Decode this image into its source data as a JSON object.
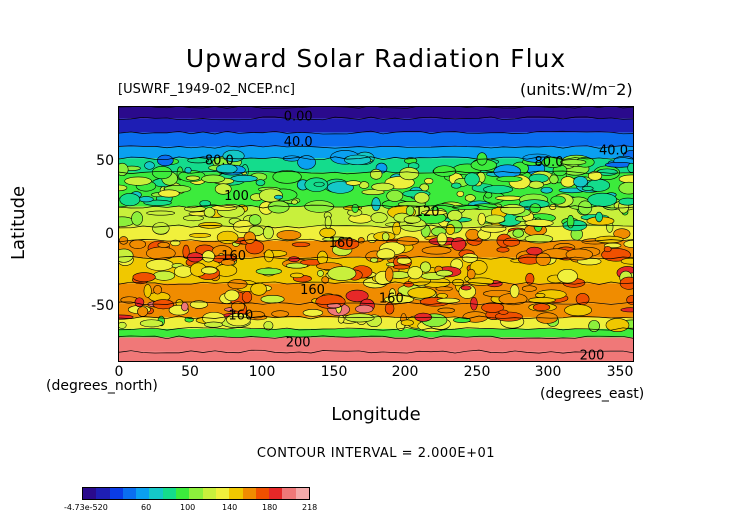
{
  "title": "Upward Solar Radiation Flux",
  "filename": "[USWRF_1949-02_NCEP.nc]",
  "units": "(units:W/m^2)",
  "axes": {
    "ylabel": "Latitude",
    "xlabel": "Longitude",
    "x_units": "(degrees_north)",
    "x_units_east": "(degrees_east)"
  },
  "contour_interval": "CONTOUR INTERVAL = 2.000E+01",
  "colorbar": {
    "colors": [
      "#2a0a8c",
      "#1e1eb4",
      "#0a3ce6",
      "#0a6ef0",
      "#0aa0f0",
      "#14c8c8",
      "#14dc8c",
      "#3ceb3c",
      "#8cf03c",
      "#c8f03c",
      "#f0f03c",
      "#f0c800",
      "#f08c00",
      "#f05000",
      "#e62828",
      "#f07878",
      "#f4aaaa"
    ],
    "labels": [
      "-4.73e-520",
      "60",
      "100",
      "140",
      "180",
      "218"
    ]
  },
  "chart_data": {
    "type": "heatmap",
    "title": "Upward Solar Radiation Flux",
    "xlabel": "Longitude",
    "ylabel": "Latitude",
    "xlim": [
      0,
      360
    ],
    "ylim": [
      -90,
      90
    ],
    "x_ticks": [
      "0",
      "50",
      "100",
      "150",
      "200",
      "250",
      "300",
      "350"
    ],
    "y_ticks": [
      "50",
      "0",
      "-50"
    ],
    "contour_interval": 20,
    "contour_labels": [
      {
        "text": "0.00",
        "lon": 125,
        "lat": 84
      },
      {
        "text": "40.0",
        "lon": 125,
        "lat": 66
      },
      {
        "text": "40.0",
        "lon": 345,
        "lat": 60
      },
      {
        "text": "80.0",
        "lon": 70,
        "lat": 53
      },
      {
        "text": "80.0",
        "lon": 300,
        "lat": 52
      },
      {
        "text": "100",
        "lon": 82,
        "lat": 28
      },
      {
        "text": "120",
        "lon": 215,
        "lat": 17
      },
      {
        "text": "160",
        "lon": 155,
        "lat": -5
      },
      {
        "text": "160",
        "lon": 80,
        "lat": -14
      },
      {
        "text": "160",
        "lon": 135,
        "lat": -38
      },
      {
        "text": "160",
        "lon": 190,
        "lat": -44
      },
      {
        "text": "160",
        "lon": 85,
        "lat": -56
      },
      {
        "text": "200",
        "lon": 125,
        "lat": -75
      },
      {
        "text": "200",
        "lon": 330,
        "lat": -84
      }
    ],
    "zonal_bands": [
      {
        "lat": [
          82,
          90
        ],
        "value": 0
      },
      {
        "lat": [
          72,
          82
        ],
        "value": 20
      },
      {
        "lat": [
          62,
          72
        ],
        "value": 40
      },
      {
        "lat": [
          54,
          62
        ],
        "value": 60
      },
      {
        "lat": [
          44,
          54
        ],
        "value": 80
      },
      {
        "lat": [
          20,
          44
        ],
        "value": 100
      },
      {
        "lat": [
          6,
          20
        ],
        "value": 120
      },
      {
        "lat": [
          -4,
          6
        ],
        "value": 140
      },
      {
        "lat": [
          -16,
          -4
        ],
        "value": 160
      },
      {
        "lat": [
          -34,
          -16
        ],
        "value": 150
      },
      {
        "lat": [
          -48,
          -34
        ],
        "value": 160
      },
      {
        "lat": [
          -58,
          -48
        ],
        "value": 170
      },
      {
        "lat": [
          -66,
          -58
        ],
        "value": 130
      },
      {
        "lat": [
          -72,
          -66
        ],
        "value": 100
      },
      {
        "lat": [
          -82,
          -72
        ],
        "value": 200
      },
      {
        "lat": [
          -90,
          -82
        ],
        "value": 210
      }
    ]
  }
}
